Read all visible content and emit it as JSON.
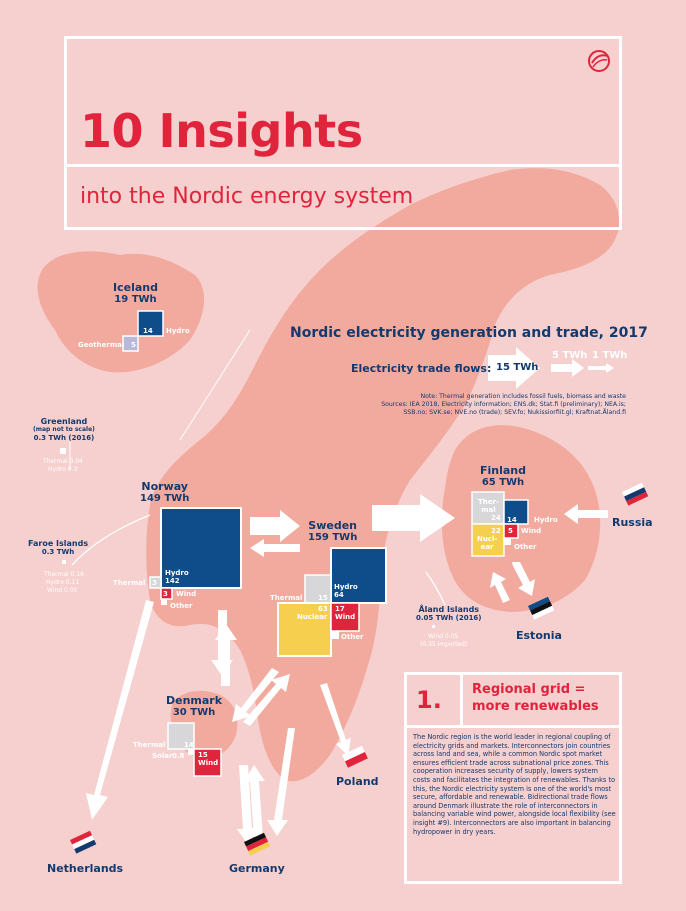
{
  "header": {
    "title": "10 Insights",
    "subtitle": "into the Nordic energy system"
  },
  "chart": {
    "title": "Nordic electricity generation and trade, 2017",
    "trade_flows_label": "Electricity trade flows:",
    "flow_legend": [
      "15 TWh",
      "5 TWh",
      "1 TWh"
    ],
    "note_lines": [
      "Note: Thermal generation includes fossil fuels, biomass and waste",
      "Sources: IEA 2018, Electricity information; ENS.dk; Stat.fi (preliminary); NEA.is;",
      "SSB.no; SVK.se; NVE.no (trade); SEV.fo; Nukissiorfiit.gl; Kraftnat.Åland.fi"
    ]
  },
  "countries": {
    "iceland": {
      "name": "Iceland",
      "total": "19 TWh",
      "hydro_value": "14",
      "hydro_label": "Hydro",
      "geo_value": "5",
      "geo_label": "Geothermal"
    },
    "greenland": {
      "name": "Greenland",
      "note": "(map not to scale)",
      "total": "0.3 TWh (2016)",
      "thermal": "Thermal 0.04",
      "hydro": "Hydro 0.3"
    },
    "faroe": {
      "name": "Faroe Islands",
      "total": "0.3 TWh",
      "thermal": "Thermal 0.16",
      "hydro": "Hydro 0.11",
      "wind": "Wind 0.05"
    },
    "norway": {
      "name": "Norway",
      "total": "149 TWh",
      "hydro_label": "Hydro",
      "hydro_value": "142",
      "thermal_label": "Thermal",
      "thermal_value": "3",
      "wind_value": "3",
      "wind_label": "Wind",
      "other_label": "Other"
    },
    "sweden": {
      "name": "Sweden",
      "total": "159 TWh",
      "hydro_label": "Hydro",
      "hydro_value": "64",
      "thermal_label": "Thermal",
      "thermal_value": "15",
      "nuclear_value": "63",
      "nuclear_label": "Nuclear",
      "wind_value": "17",
      "wind_label": "Wind",
      "other_label": "Other"
    },
    "finland": {
      "name": "Finland",
      "total": "65 TWh",
      "thermal_label": "Ther-\nmal",
      "thermal_value": "24",
      "hydro_value": "14",
      "hydro_label": "Hydro",
      "nuclear_value": "22",
      "nuclear_label": "Nucl-\near",
      "wind_value": "5",
      "wind_label": "Wind",
      "other_label": "Other"
    },
    "denmark": {
      "name": "Denmark",
      "total": "30 TWh",
      "thermal_label": "Thermal",
      "thermal_value": "14",
      "solar_label": "Solar",
      "solar_value": "0.8",
      "wind_value": "15",
      "wind_label": "Wind"
    },
    "aland": {
      "name": "Åland Islands",
      "total": "0.05 TWh (2016)",
      "wind": "Wind 0.05",
      "imported": "(0.35 imported)"
    },
    "russia": {
      "name": "Russia"
    },
    "estonia": {
      "name": "Estonia"
    },
    "poland": {
      "name": "Poland"
    },
    "germany": {
      "name": "Germany"
    },
    "netherlands": {
      "name": "Netherlands"
    }
  },
  "colors": {
    "background": "#f6cfcf",
    "land": "#f2aa9e",
    "hydro": "#0f4c8a",
    "wind": "#e0243b",
    "nuclear": "#f7cf4f",
    "thermal": "#d7d7d9",
    "geothermal": "#b8b8d8",
    "title_red": "#e0243b",
    "navy": "#133a6e"
  },
  "insight": {
    "number": "1.",
    "heading": "Regional grid = more renewables",
    "body": "The Nordic region is the world leader in regional coupling of electricity grids and markets. Interconnectors join countries across land and sea, while a common Nordic spot market ensures efficient trade across subnational price zones. This cooperation increases security of supply, lowers system costs and facilitates the integration of renewables. Thanks to this, the Nordic electricity system is one of the world's most secure, affordable and renewable. Bidirectional trade flows around Denmark illustrate the role of interconnectors in balancing variable wind power, alongside local flexibility (see insight #9). Interconnectors are also important in balancing hydropower in dry years."
  }
}
